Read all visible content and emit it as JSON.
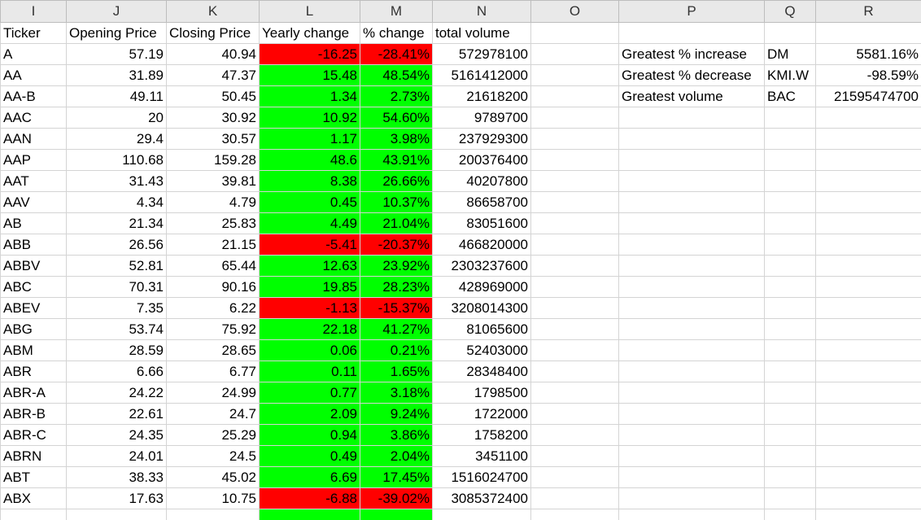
{
  "columns": [
    "I",
    "J",
    "K",
    "L",
    "M",
    "N",
    "O",
    "P",
    "Q",
    "R"
  ],
  "headers": [
    "Ticker",
    "Opening Price",
    "Closing Price",
    "Yearly change",
    "% change",
    "total volume"
  ],
  "rows": [
    {
      "t": "A",
      "o": "57.19",
      "c": "40.94",
      "y": "-16.25",
      "p": "-28.41%",
      "v": "572978100",
      "s": "neg"
    },
    {
      "t": "AA",
      "o": "31.89",
      "c": "47.37",
      "y": "15.48",
      "p": "48.54%",
      "v": "5161412000",
      "s": "pos"
    },
    {
      "t": "AA-B",
      "o": "49.11",
      "c": "50.45",
      "y": "1.34",
      "p": "2.73%",
      "v": "21618200",
      "s": "pos"
    },
    {
      "t": "AAC",
      "o": "20",
      "c": "30.92",
      "y": "10.92",
      "p": "54.60%",
      "v": "9789700",
      "s": "pos"
    },
    {
      "t": "AAN",
      "o": "29.4",
      "c": "30.57",
      "y": "1.17",
      "p": "3.98%",
      "v": "237929300",
      "s": "pos"
    },
    {
      "t": "AAP",
      "o": "110.68",
      "c": "159.28",
      "y": "48.6",
      "p": "43.91%",
      "v": "200376400",
      "s": "pos"
    },
    {
      "t": "AAT",
      "o": "31.43",
      "c": "39.81",
      "y": "8.38",
      "p": "26.66%",
      "v": "40207800",
      "s": "pos"
    },
    {
      "t": "AAV",
      "o": "4.34",
      "c": "4.79",
      "y": "0.45",
      "p": "10.37%",
      "v": "86658700",
      "s": "pos"
    },
    {
      "t": "AB",
      "o": "21.34",
      "c": "25.83",
      "y": "4.49",
      "p": "21.04%",
      "v": "83051600",
      "s": "pos"
    },
    {
      "t": "ABB",
      "o": "26.56",
      "c": "21.15",
      "y": "-5.41",
      "p": "-20.37%",
      "v": "466820000",
      "s": "neg"
    },
    {
      "t": "ABBV",
      "o": "52.81",
      "c": "65.44",
      "y": "12.63",
      "p": "23.92%",
      "v": "2303237600",
      "s": "pos"
    },
    {
      "t": "ABC",
      "o": "70.31",
      "c": "90.16",
      "y": "19.85",
      "p": "28.23%",
      "v": "428969000",
      "s": "pos"
    },
    {
      "t": "ABEV",
      "o": "7.35",
      "c": "6.22",
      "y": "-1.13",
      "p": "-15.37%",
      "v": "3208014300",
      "s": "neg"
    },
    {
      "t": "ABG",
      "o": "53.74",
      "c": "75.92",
      "y": "22.18",
      "p": "41.27%",
      "v": "81065600",
      "s": "pos"
    },
    {
      "t": "ABM",
      "o": "28.59",
      "c": "28.65",
      "y": "0.06",
      "p": "0.21%",
      "v": "52403000",
      "s": "pos"
    },
    {
      "t": "ABR",
      "o": "6.66",
      "c": "6.77",
      "y": "0.11",
      "p": "1.65%",
      "v": "28348400",
      "s": "pos"
    },
    {
      "t": "ABR-A",
      "o": "24.22",
      "c": "24.99",
      "y": "0.77",
      "p": "3.18%",
      "v": "1798500",
      "s": "pos"
    },
    {
      "t": "ABR-B",
      "o": "22.61",
      "c": "24.7",
      "y": "2.09",
      "p": "9.24%",
      "v": "1722000",
      "s": "pos"
    },
    {
      "t": "ABR-C",
      "o": "24.35",
      "c": "25.29",
      "y": "0.94",
      "p": "3.86%",
      "v": "1758200",
      "s": "pos"
    },
    {
      "t": "ABRN",
      "o": "24.01",
      "c": "24.5",
      "y": "0.49",
      "p": "2.04%",
      "v": "3451100",
      "s": "pos"
    },
    {
      "t": "ABT",
      "o": "38.33",
      "c": "45.02",
      "y": "6.69",
      "p": "17.45%",
      "v": "1516024700",
      "s": "pos"
    },
    {
      "t": "ABX",
      "o": "17.63",
      "c": "10.75",
      "y": "-6.88",
      "p": "-39.02%",
      "v": "3085372400",
      "s": "neg"
    }
  ],
  "summary": [
    {
      "label": "Greatest % increase",
      "ticker": "DM",
      "value": "5581.16%"
    },
    {
      "label": "Greatest % decrease",
      "ticker": "KMI.W",
      "value": "-98.59%"
    },
    {
      "label": "Greatest volume",
      "ticker": "BAC",
      "value": "21595474700"
    }
  ],
  "colors": {
    "positive": "#00ff00",
    "negative": "#ff0000",
    "header_bg": "#e9e9e9",
    "gridline": "#d4d4d4"
  }
}
